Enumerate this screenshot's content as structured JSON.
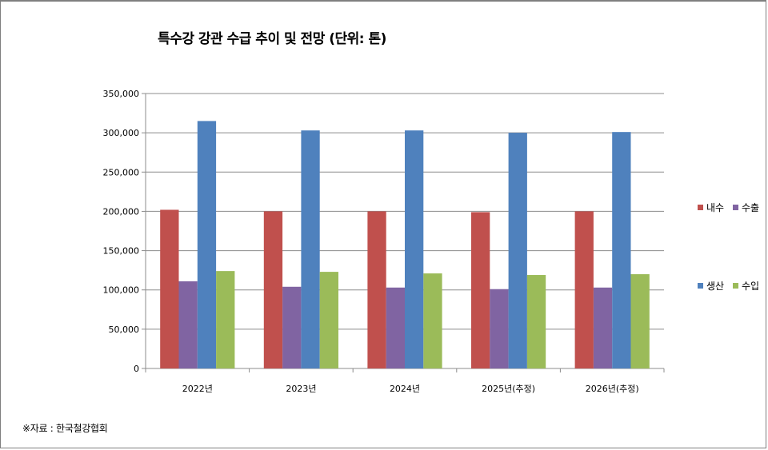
{
  "chart_data": {
    "type": "bar",
    "title": "특수강 강관 수급 추이 및 전망 (단위: 톤)",
    "categories": [
      "2022년",
      "2023년",
      "2024년",
      "2025년(추정)",
      "2026년(추정)"
    ],
    "series": [
      {
        "name": "내수",
        "color": "#c0504d",
        "values": [
          202000,
          200000,
          200000,
          199000,
          200000
        ]
      },
      {
        "name": "수출",
        "color": "#8064a2",
        "values": [
          111000,
          104000,
          103000,
          101000,
          103000
        ]
      },
      {
        "name": "생산",
        "color": "#4f81bd",
        "values": [
          315000,
          303000,
          303000,
          300000,
          301000
        ]
      },
      {
        "name": "수입",
        "color": "#9bbb59",
        "values": [
          124000,
          123000,
          121000,
          119000,
          120000
        ]
      }
    ],
    "ylim": [
      0,
      350000
    ],
    "yticks": [
      "0",
      "50,000",
      "100,000",
      "150,000",
      "200,000",
      "250,000",
      "300,000",
      "350,000"
    ],
    "grid": true,
    "legend_position": "right"
  },
  "source_note": "※자료 : 한국철강협회"
}
